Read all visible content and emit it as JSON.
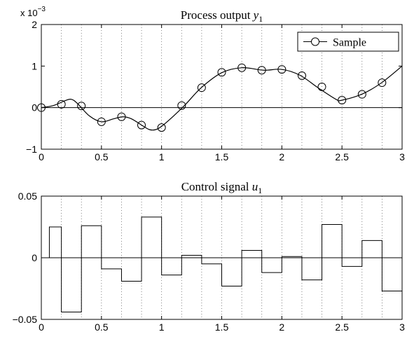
{
  "chart_data": [
    {
      "type": "line",
      "title_text": "Process output ",
      "title_var": "y",
      "title_sub": "1",
      "exponent_label": "x 10",
      "exponent_power": "−3",
      "xlim": [
        0,
        3
      ],
      "ylim": [
        -1,
        2
      ],
      "x_ticks": [
        0,
        0.5,
        1,
        1.5,
        2,
        2.5,
        3
      ],
      "x_tick_labels": [
        "0",
        "0.5",
        "1",
        "1.5",
        "2",
        "2.5",
        "3"
      ],
      "y_ticks": [
        -1,
        0,
        1,
        2
      ],
      "y_tick_labels": [
        "−1",
        "0",
        "1",
        "2"
      ],
      "grid": "vertical-dotted",
      "legend": {
        "placement": "top-right",
        "entries": [
          "Sample"
        ]
      },
      "series": [
        {
          "kind": "continuous",
          "x": [
            0,
            0.1,
            0.2,
            0.25,
            0.3,
            0.4,
            0.5,
            0.6,
            0.68,
            0.75,
            0.85,
            0.9,
            0.95,
            1.0,
            1.1,
            1.2,
            1.33,
            1.5,
            1.67,
            1.85,
            2.0,
            2.15,
            2.3,
            2.45,
            2.5,
            2.67,
            2.83,
            3.0
          ],
          "y": [
            0,
            0.05,
            0.17,
            0.2,
            0.1,
            -0.2,
            -0.34,
            -0.27,
            -0.22,
            -0.27,
            -0.45,
            -0.53,
            -0.53,
            -0.45,
            -0.2,
            0.08,
            0.48,
            0.84,
            0.96,
            0.9,
            0.92,
            0.78,
            0.48,
            0.2,
            0.18,
            0.33,
            0.6,
            1.0
          ]
        },
        {
          "name": "Sample",
          "kind": "markers",
          "x": [
            0,
            0.167,
            0.333,
            0.5,
            0.667,
            0.833,
            1.0,
            1.167,
            1.333,
            1.5,
            1.667,
            1.833,
            2.0,
            2.167,
            2.333,
            2.5,
            2.667,
            2.833
          ],
          "y": [
            0,
            0.08,
            0.04,
            -0.34,
            -0.22,
            -0.42,
            -0.48,
            0.05,
            0.48,
            0.85,
            0.96,
            0.9,
            0.92,
            0.77,
            0.5,
            0.18,
            0.32,
            0.6
          ]
        }
      ]
    },
    {
      "type": "line",
      "title_text": "Control signal ",
      "title_var": "u",
      "title_sub": "1",
      "xlim": [
        0,
        3
      ],
      "ylim": [
        -0.05,
        0.05
      ],
      "x_ticks": [
        0,
        0.5,
        1,
        1.5,
        2,
        2.5,
        3
      ],
      "x_tick_labels": [
        "0",
        "0.5",
        "1",
        "1.5",
        "2",
        "2.5",
        "3"
      ],
      "y_ticks": [
        -0.05,
        0,
        0.05
      ],
      "y_tick_labels": [
        "−0.05",
        "0",
        "0.05"
      ],
      "grid": "vertical-dotted",
      "series": [
        {
          "kind": "staircase",
          "x": [
            0.0667,
            0.1667,
            0.3333,
            0.5,
            0.6667,
            0.8333,
            1.0,
            1.1667,
            1.3333,
            1.5,
            1.6667,
            1.8333,
            2.0,
            2.1667,
            2.3333,
            2.5,
            2.6667,
            2.8333
          ],
          "y": [
            0.025,
            -0.044,
            0.026,
            -0.009,
            -0.019,
            0.033,
            -0.014,
            0.002,
            -0.005,
            -0.023,
            0.006,
            -0.012,
            0.001,
            -0.018,
            0.027,
            -0.007,
            0.014,
            -0.027
          ],
          "x_end": 3
        }
      ]
    }
  ]
}
